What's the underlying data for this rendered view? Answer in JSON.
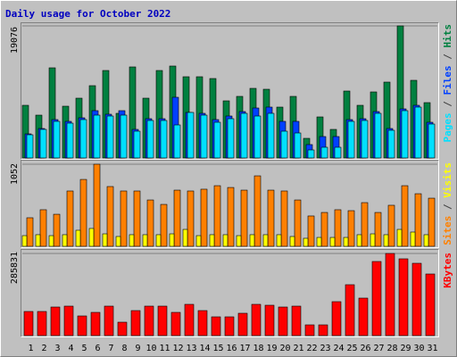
{
  "title": "Daily usage for October 2022",
  "legend_separator": "/",
  "chart_data": [
    {
      "type": "bar",
      "ylim": [
        0,
        19076
      ],
      "yticks": [
        19076
      ],
      "series": [
        {
          "name": "Pages",
          "color": "#00e0ff",
          "values": [
            3351,
            4125,
            5285,
            5027,
            5543,
            6187,
            6058,
            6187,
            3867,
            5414,
            5414,
            4769,
            6574,
            6187,
            5156,
            5672,
            6445,
            6058,
            6445,
            3867,
            3609,
            1160,
            1547,
            1547,
            5285,
            5414,
            6445,
            3996,
            6832,
            7347,
            4898
          ]
        },
        {
          "name": "Files",
          "color": "#0040ff",
          "values": [
            3480,
            4254,
            5543,
            5285,
            5801,
            6832,
            6316,
            6832,
            4125,
            5672,
            5672,
            8765,
            6574,
            6445,
            5543,
            6058,
            6703,
            7218,
            7347,
            5285,
            5285,
            1934,
            3094,
            3094,
            5543,
            5672,
            6703,
            4254,
            7090,
            7605,
            5156
          ]
        },
        {
          "name": "Hits",
          "color": "#008040",
          "values": [
            7605,
            6187,
            13019,
            7476,
            8636,
            10441,
            12632,
            6445,
            13148,
            8636,
            12632,
            13277,
            11730,
            11730,
            11472,
            8250,
            8894,
            10054,
            9925,
            7347,
            8894,
            2836,
            5929,
            4125,
            9667,
            7605,
            9538,
            10957,
            19076,
            11214,
            7992
          ]
        }
      ]
    },
    {
      "type": "bar",
      "ylim": [
        0,
        1052
      ],
      "yticks": [
        1052
      ],
      "series": [
        {
          "name": "Sites",
          "color": "#ff8000",
          "values": [
            366,
            469,
            411,
            709,
            857,
            1052,
            766,
            709,
            709,
            594,
            537,
            720,
            709,
            732,
            777,
            754,
            720,
            903,
            720,
            709,
            594,
            389,
            434,
            469,
            457,
            560,
            434,
            526,
            777,
            674,
            617
          ]
        },
        {
          "name": "Visits",
          "color": "#ffff00",
          "values": [
            137,
            149,
            137,
            149,
            206,
            229,
            160,
            126,
            149,
            149,
            149,
            160,
            217,
            137,
            149,
            149,
            137,
            149,
            149,
            149,
            126,
            103,
            114,
            114,
            114,
            149,
            160,
            149,
            217,
            183,
            149
          ]
        }
      ]
    },
    {
      "type": "bar",
      "ylim": [
        0,
        285831
      ],
      "yticks": [
        285831
      ],
      "categories": [
        "1",
        "2",
        "3",
        "4",
        "5",
        "6",
        "7",
        "8",
        "9",
        "10",
        "11",
        "12",
        "13",
        "14",
        "15",
        "16",
        "17",
        "18",
        "19",
        "20",
        "21",
        "22",
        "23",
        "24",
        "25",
        "26",
        "27",
        "28",
        "29",
        "30",
        "31"
      ],
      "category_colors": [
        "#008040",
        "#008040",
        "#0000c0",
        "#0000c0",
        "#0000c0",
        "#0000c0",
        "#0000c0",
        "#008040",
        "#008040",
        "#0000c0",
        "#0000c0",
        "#0000c0",
        "#0000c0",
        "#0000c0",
        "#008040",
        "#008040",
        "#0000c0",
        "#0000c0",
        "#0000c0",
        "#0000c0",
        "#0000c0",
        "#008040",
        "#008040",
        "#0000c0",
        "#0000c0",
        "#0000c0",
        "#0000c0",
        "#0000c0",
        "#008040",
        "#008040",
        "#0000c0"
      ],
      "series": [
        {
          "name": "KBytes",
          "color": "#ff0000",
          "values": [
            83889,
            83889,
            99424,
            102531,
            68354,
            80782,
            102531,
            46605,
            86996,
            102531,
            102531,
            80782,
            108745,
            86996,
            65247,
            65247,
            77675,
            108745,
            105638,
            99424,
            102531,
            37284,
            37284,
            118066,
            177099,
            130494,
            257881,
            285831,
            267202,
            251667,
            214383
          ]
        }
      ]
    }
  ]
}
